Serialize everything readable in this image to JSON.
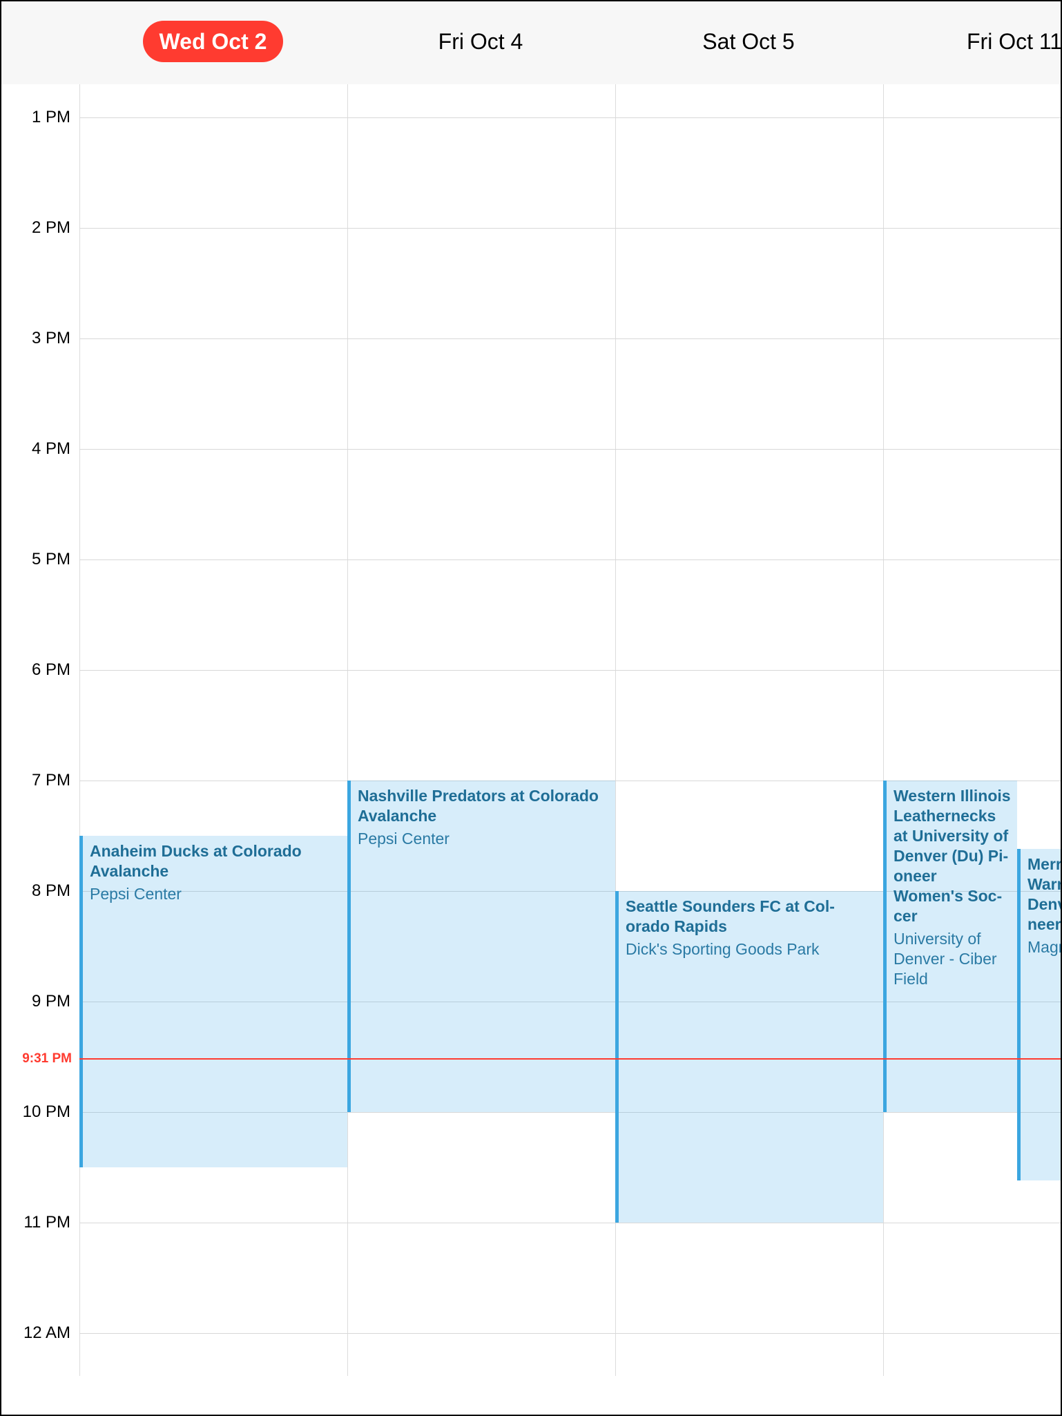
{
  "header": {
    "days": [
      {
        "label": "Wed Oct 2",
        "today": true
      },
      {
        "label": "Fri Oct 4",
        "today": false
      },
      {
        "label": "Sat Oct 5",
        "today": false
      },
      {
        "label": "Fri Oct 11",
        "today": false
      }
    ]
  },
  "timeline": {
    "hours": [
      "1 PM",
      "2 PM",
      "3 PM",
      "4 PM",
      "5 PM",
      "6 PM",
      "7 PM",
      "8 PM",
      "9 PM",
      "10 PM",
      "11 PM",
      "12 AM"
    ],
    "now_label": "9:31 PM"
  },
  "events": [
    {
      "title": "Anaheim Ducks at Colorado\nAvalanche",
      "location": "Pepsi Center"
    },
    {
      "title": "Nashville Predators at Colorado\nAvalanche",
      "location": "Pepsi Center"
    },
    {
      "title": "Seattle Sounders FC at Col-\norado Rapids",
      "location": "Dick's Sporting Goods Park"
    },
    {
      "title": "Western Illinois\nLeathernecks\nat University of\nDenver (Du) Pi-\noneer\nWomen's Soc-\ncer",
      "location": "University of\nDenver - Ciber\nField"
    },
    {
      "title": "Merr\nWarr\nDenv\nneers",
      "location": "Magn"
    }
  ],
  "colors": {
    "accent": "#ff3b30",
    "event_border": "#3ba6e0",
    "event_text": "#1f6e96"
  }
}
